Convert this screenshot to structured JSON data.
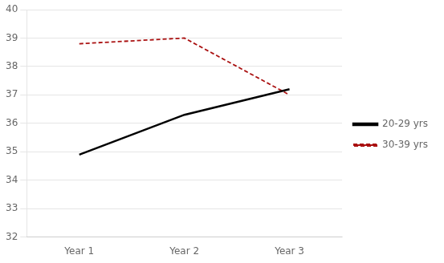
{
  "chart_data": {
    "type": "line",
    "categories": [
      "Year 1",
      "Year 2",
      "Year 3"
    ],
    "series": [
      {
        "name": "20-29 yrs",
        "color": "#000000",
        "line_style": "solid",
        "values": [
          34.9,
          36.3,
          37.2
        ]
      },
      {
        "name": "30-39 yrs",
        "color": "#aa1111",
        "line_style": "dashed",
        "values": [
          38.8,
          39.0,
          37.0
        ]
      }
    ],
    "ylim": [
      32,
      40
    ],
    "yticks": [
      32,
      33,
      34,
      35,
      36,
      37,
      38,
      39,
      40
    ],
    "grid": true,
    "legend": "right"
  }
}
